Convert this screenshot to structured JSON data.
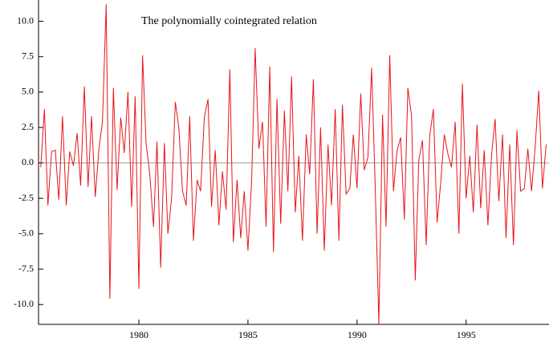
{
  "chart_data": {
    "type": "line",
    "annotation": "The polynomially cointegrated relation",
    "color": "#e8141b",
    "reference_line": 0,
    "xlim": [
      1975.4,
      1998.8
    ],
    "ylim": [
      -11.4,
      11.5
    ],
    "xticks": [
      1980,
      1985,
      1990,
      1995
    ],
    "yticks": [
      {
        "value": -10,
        "label": "-10.0"
      },
      {
        "value": -7.5,
        "label": "-7.5"
      },
      {
        "value": -5,
        "label": "-5.0"
      },
      {
        "value": -2.5,
        "label": "-2.5"
      },
      {
        "value": 0,
        "label": "0.0"
      },
      {
        "value": 2.5,
        "label": "2.5"
      },
      {
        "value": 5,
        "label": "5.0"
      },
      {
        "value": 7.5,
        "label": "7.5"
      },
      {
        "value": 10,
        "label": "10.0"
      }
    ],
    "x": [
      1975.5,
      1975.67,
      1975.83,
      1976,
      1976.17,
      1976.33,
      1976.5,
      1976.67,
      1976.83,
      1977,
      1977.17,
      1977.33,
      1977.5,
      1977.67,
      1977.83,
      1978,
      1978.17,
      1978.33,
      1978.5,
      1978.67,
      1978.83,
      1979,
      1979.17,
      1979.33,
      1979.5,
      1979.67,
      1979.83,
      1980,
      1980.17,
      1980.33,
      1980.5,
      1980.67,
      1980.83,
      1981,
      1981.17,
      1981.33,
      1981.5,
      1981.67,
      1981.83,
      1982,
      1982.17,
      1982.33,
      1982.5,
      1982.67,
      1982.83,
      1983,
      1983.17,
      1983.33,
      1983.5,
      1983.67,
      1983.83,
      1984,
      1984.17,
      1984.33,
      1984.5,
      1984.67,
      1984.83,
      1985,
      1985.17,
      1985.33,
      1985.5,
      1985.67,
      1985.83,
      1986,
      1986.17,
      1986.33,
      1986.5,
      1986.67,
      1986.83,
      1987,
      1987.17,
      1987.33,
      1987.5,
      1987.67,
      1987.83,
      1988,
      1988.17,
      1988.33,
      1988.5,
      1988.67,
      1988.83,
      1989,
      1989.17,
      1989.33,
      1989.5,
      1989.67,
      1989.83,
      1990,
      1990.17,
      1990.33,
      1990.5,
      1990.67,
      1990.83,
      1991,
      1991.17,
      1991.33,
      1991.5,
      1991.67,
      1991.83,
      1992,
      1992.17,
      1992.33,
      1992.5,
      1992.67,
      1992.83,
      1993,
      1993.17,
      1993.33,
      1993.5,
      1993.67,
      1993.83,
      1994,
      1994.17,
      1994.33,
      1994.5,
      1994.67,
      1994.83,
      1995,
      1995.17,
      1995.33,
      1995.5,
      1995.67,
      1995.83,
      1996,
      1996.17,
      1996.33,
      1996.5,
      1996.67,
      1996.83,
      1997,
      1997.17,
      1997.33,
      1997.5,
      1997.67,
      1997.83,
      1998,
      1998.17,
      1998.33,
      1998.5,
      1998.67
    ],
    "values": [
      -0.3,
      3.8,
      -3.0,
      0.8,
      0.9,
      -2.6,
      3.3,
      -3.0,
      0.8,
      -0.2,
      2.1,
      -1.6,
      5.4,
      -1.7,
      3.3,
      -2.4,
      1.0,
      2.9,
      11.2,
      -9.6,
      5.3,
      -1.9,
      3.2,
      0.7,
      5.0,
      -3.1,
      4.7,
      -8.9,
      7.6,
      1.4,
      -0.8,
      -4.5,
      1.5,
      -7.4,
      1.4,
      -5.0,
      -2.5,
      4.3,
      2.5,
      -2.0,
      -3.0,
      3.3,
      -5.5,
      -1.2,
      -2.0,
      3.2,
      4.5,
      -3.1,
      0.9,
      -4.4,
      -0.6,
      -3.3,
      6.6,
      -5.6,
      -1.2,
      -5.3,
      -2.0,
      -6.2,
      -1.2,
      8.1,
      1.0,
      2.9,
      -4.5,
      6.8,
      -6.3,
      4.5,
      -4.3,
      3.7,
      -2.0,
      6.1,
      -3.5,
      0.5,
      -5.5,
      2.0,
      -0.8,
      5.9,
      -5.0,
      2.5,
      -6.2,
      1.3,
      -3.0,
      3.8,
      -5.5,
      4.1,
      -2.2,
      -1.8,
      2.0,
      -1.8,
      4.9,
      -0.5,
      0.4,
      6.7,
      -1.5,
      -11.4,
      3.4,
      -4.5,
      7.6,
      -2.0,
      0.8,
      1.8,
      -4.0,
      5.3,
      3.3,
      -8.3,
      0.2,
      1.6,
      -5.8,
      1.9,
      3.8,
      -4.2,
      -1.5,
      2.0,
      0.6,
      -0.3,
      2.9,
      -5.0,
      5.6,
      -2.5,
      0.5,
      -3.5,
      2.7,
      -3.2,
      0.9,
      -4.4,
      0.6,
      3.1,
      -2.7,
      2.0,
      -5.3,
      1.3,
      -5.8,
      2.3,
      -2.0,
      -1.8,
      1.0,
      -2.0,
      1.2,
      5.1,
      -1.8,
      1.3
    ]
  }
}
